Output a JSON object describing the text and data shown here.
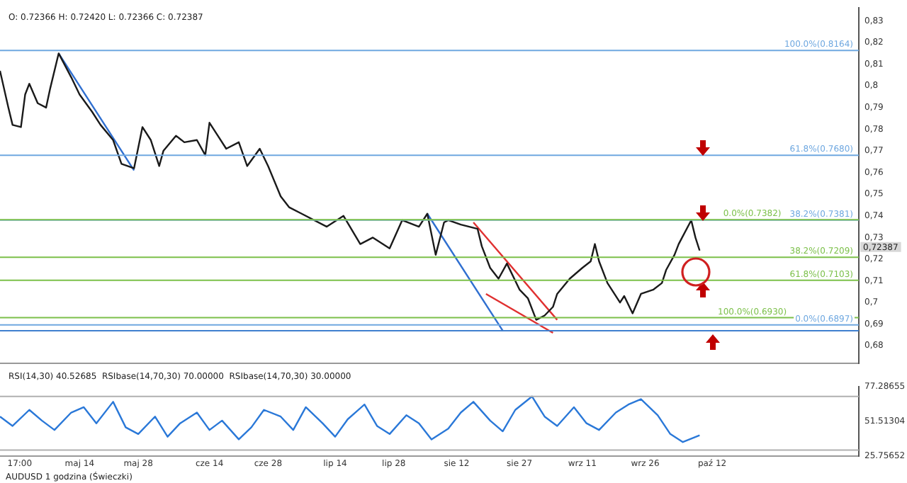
{
  "chart_data": [
    {
      "type": "line",
      "tick_labels": "y",
      "legend": false,
      "grid": false,
      "marker": "none",
      "xlim": [
        "--04-25",
        "--11-16"
      ],
      "ylim": [
        0.672,
        0.836
      ],
      "yticks": [
        {
          "value": 0.68,
          "label": "0,68"
        },
        {
          "value": 0.69,
          "label": "0,69"
        },
        {
          "value": 0.7,
          "label": "0,7"
        },
        {
          "value": 0.71,
          "label": "0,71"
        },
        {
          "value": 0.72,
          "label": "0,72"
        },
        {
          "value": 0.73,
          "label": "0,73"
        },
        {
          "value": 0.74,
          "label": "0,74"
        },
        {
          "value": 0.75,
          "label": "0,75"
        },
        {
          "value": 0.76,
          "label": "0,76"
        },
        {
          "value": 0.77,
          "label": "0,77"
        },
        {
          "value": 0.78,
          "label": "0,78"
        },
        {
          "value": 0.79,
          "label": "0,79"
        },
        {
          "value": 0.8,
          "label": "0,8"
        },
        {
          "value": 0.81,
          "label": "0,81"
        },
        {
          "value": 0.82,
          "label": "0,82"
        },
        {
          "value": 0.83,
          "label": "0,83"
        }
      ],
      "series": [
        {
          "color": "#1a1a1a",
          "x": [
            "--04-25",
            "--04-27",
            "--04-28",
            "--04-30",
            "--05-01",
            "--05-02",
            "--05-04",
            "--05-06",
            "--05-07",
            "--05-09",
            "--05-12",
            "--05-14",
            "--05-17",
            "--05-19",
            "--05-22",
            "--05-24",
            "--05-27",
            "--05-29",
            "--05-31",
            "--06-02",
            "--06-03",
            "--06-06",
            "--06-08",
            "--06-11",
            "--06-13",
            "--06-14",
            "--06-16",
            "--06-18",
            "--06-21",
            "--06-23",
            "--06-26",
            "--06-28",
            "--07-01",
            "--07-03",
            "--07-06",
            "--07-12",
            "--07-16",
            "--07-20",
            "--07-23",
            "--07-27",
            "--07-30",
            "--08-03",
            "--08-05",
            "--08-07",
            "--08-09",
            "--08-10",
            "--08-13",
            "--08-17",
            "--08-18",
            "--08-20",
            "--08-22",
            "--08-24",
            "--08-27",
            "--08-29",
            "--08-31",
            "--09-02",
            "--09-04",
            "--09-05",
            "--09-08",
            "--09-11",
            "--09-13",
            "--09-14",
            "--09-15",
            "--09-17",
            "--09-20",
            "--09-21",
            "--09-23",
            "--09-25",
            "--09-28",
            "--09-30",
            "--10-01",
            "--10-03",
            "--10-04",
            "--10-07",
            "--10-08",
            "--10-09"
          ],
          "values": [
            0.807,
            0.79,
            0.782,
            0.781,
            0.796,
            0.801,
            0.792,
            0.79,
            0.799,
            0.815,
            0.804,
            0.796,
            0.788,
            0.782,
            0.775,
            0.764,
            0.762,
            0.781,
            0.775,
            0.763,
            0.77,
            0.777,
            0.774,
            0.775,
            0.768,
            0.783,
            0.777,
            0.771,
            0.774,
            0.763,
            0.771,
            0.763,
            0.749,
            0.744,
            0.741,
            0.735,
            0.74,
            0.727,
            0.73,
            0.725,
            0.738,
            0.735,
            0.741,
            0.722,
            0.737,
            0.738,
            0.736,
            0.734,
            0.726,
            0.716,
            0.711,
            0.718,
            0.706,
            0.702,
            0.692,
            0.694,
            0.698,
            0.704,
            0.711,
            0.716,
            0.719,
            0.727,
            0.719,
            0.709,
            0.7,
            0.703,
            0.695,
            0.704,
            0.706,
            0.709,
            0.715,
            0.722,
            0.727,
            0.738,
            0.73,
            0.724
          ]
        },
        {
          "color": "#2f6fd0",
          "x": [
            "--05-09",
            "--05-27"
          ],
          "values": [
            0.815,
            0.761
          ]
        },
        {
          "color": "#2f6fd0",
          "x": [
            "--08-05",
            "--08-23"
          ],
          "values": [
            0.741,
            0.687
          ]
        },
        {
          "color": "#e03030",
          "x": [
            "--08-16",
            "--09-05"
          ],
          "values": [
            0.737,
            0.692
          ]
        },
        {
          "color": "#e03030",
          "x": [
            "--08-19",
            "--09-04"
          ],
          "values": [
            0.704,
            0.686
          ]
        }
      ],
      "ref_lines": [
        {
          "axis": "y",
          "value": 0.8164,
          "label": "100.0%(0.8164)",
          "color": "#6fa8e0"
        },
        {
          "axis": "y",
          "value": 0.768,
          "label": "61.8%(0.7680)",
          "color": "#6fa8e0"
        },
        {
          "axis": "y",
          "value": 0.7381,
          "label": "38.2%(0.7381)",
          "color": "#6fa8e0"
        },
        {
          "axis": "y",
          "value": 0.6897,
          "label": "0.0%(0.6897)",
          "color": "#6fa8e0"
        },
        {
          "axis": "y",
          "value": 0.7382,
          "label": "0.0%(0.7382)",
          "color": "#7cc04a"
        },
        {
          "axis": "y",
          "value": 0.7209,
          "label": "38.2%(0.7209)",
          "color": "#7cc04a"
        },
        {
          "axis": "y",
          "value": 0.7103,
          "label": "61.8%(0.7103)",
          "color": "#7cc04a"
        },
        {
          "axis": "y",
          "value": 0.693,
          "label": "100.0%(0.6930)",
          "color": "#7cc04a"
        },
        {
          "axis": "y",
          "value": 0.687,
          "color": "#3f7fcf"
        }
      ],
      "annotations": [
        "O: 0.72366 H: 0.72420 L: 0.72366 C: 0.72387",
        "0,72387"
      ]
    },
    {
      "type": "line",
      "legend": false,
      "grid": false,
      "marker": "none",
      "xlim": [
        "--04-25",
        "--11-16"
      ],
      "ylim": [
        25.75652,
        77.28655
      ],
      "xticks": [
        {
          "value": "--04-29T17:00",
          "label": "17:00"
        },
        {
          "value": "--05-14",
          "label": "maj 14"
        },
        {
          "value": "--05-28",
          "label": "maj 28"
        },
        {
          "value": "--06-14",
          "label": "cze 14"
        },
        {
          "value": "--06-28",
          "label": "cze 28"
        },
        {
          "value": "--07-14",
          "label": "lip 14"
        },
        {
          "value": "--07-28",
          "label": "lip 28"
        },
        {
          "value": "--08-12",
          "label": "sie 12"
        },
        {
          "value": "--08-27",
          "label": "sie 27"
        },
        {
          "value": "--09-11",
          "label": "wrz 11"
        },
        {
          "value": "--09-26",
          "label": "wrz 26"
        },
        {
          "value": "--10-12",
          "label": "paź 12"
        }
      ],
      "yticks": [
        25.75652,
        51.51304,
        77.28655
      ],
      "series": [
        {
          "color": "#2a78d8",
          "x": [
            "--04-25",
            "--04-28",
            "--05-02",
            "--05-05",
            "--05-08",
            "--05-12",
            "--05-15",
            "--05-18",
            "--05-22",
            "--05-25",
            "--05-28",
            "--06-01",
            "--06-04",
            "--06-07",
            "--06-11",
            "--06-14",
            "--06-17",
            "--06-21",
            "--06-24",
            "--06-27",
            "--07-01",
            "--07-04",
            "--07-07",
            "--07-11",
            "--07-14",
            "--07-17",
            "--07-21",
            "--07-24",
            "--07-27",
            "--07-31",
            "--08-03",
            "--08-06",
            "--08-10",
            "--08-13",
            "--08-16",
            "--08-20",
            "--08-23",
            "--08-26",
            "--08-30",
            "--09-02",
            "--09-05",
            "--09-09",
            "--09-12",
            "--09-15",
            "--09-19",
            "--09-22",
            "--09-25",
            "--09-29",
            "--10-02",
            "--10-05",
            "--10-09"
          ],
          "values": [
            55,
            48,
            60,
            52,
            45,
            58,
            62,
            50,
            66,
            47,
            42,
            55,
            40,
            50,
            58,
            45,
            52,
            38,
            47,
            60,
            55,
            45,
            62,
            50,
            40,
            53,
            64,
            48,
            42,
            56,
            50,
            38,
            46,
            58,
            66,
            52,
            44,
            60,
            70,
            55,
            48,
            62,
            50,
            45,
            58,
            64,
            68,
            56,
            42,
            36,
            41
          ]
        }
      ],
      "ref_lines": [
        {
          "axis": "y",
          "value": 70,
          "color": "#b0b0b0"
        },
        {
          "axis": "y",
          "value": 30,
          "color": "#b0b0b0"
        }
      ],
      "annotations": [
        "RSI(14,30) 40.52685  RSIbase(14,70,30) 70.00000  RSIbase(14,70,30) 30.00000",
        "AUDUSD 1 godzina (Świeczki)"
      ]
    }
  ]
}
